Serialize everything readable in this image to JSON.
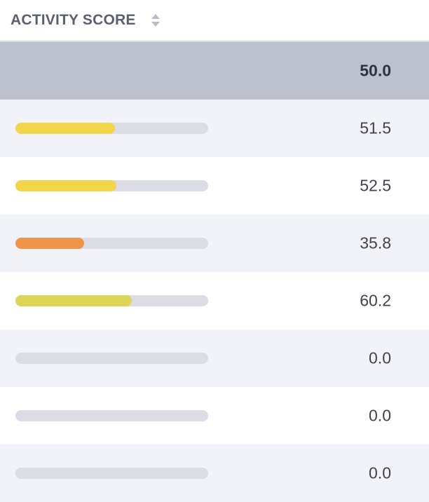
{
  "header": {
    "title": "ACTIVITY SCORE",
    "sort_icon": "sort-up-down-icon"
  },
  "summary": {
    "value": "50.0"
  },
  "rows": [
    {
      "value": "51.5",
      "score": 51.5,
      "fill_fraction": 0.515,
      "color": "#f3d54a"
    },
    {
      "value": "52.5",
      "score": 52.5,
      "fill_fraction": 0.525,
      "color": "#f3d54a"
    },
    {
      "value": "35.8",
      "score": 35.8,
      "fill_fraction": 0.358,
      "color": "#ef954a"
    },
    {
      "value": "60.2",
      "score": 60.2,
      "fill_fraction": 0.602,
      "color": "#dcd556"
    },
    {
      "value": "0.0",
      "score": 0.0,
      "fill_fraction": 0.0,
      "color": "#dcdde4"
    },
    {
      "value": "0.0",
      "score": 0.0,
      "fill_fraction": 0.0,
      "color": "#dcdde4"
    },
    {
      "value": "0.0",
      "score": 0.0,
      "fill_fraction": 0.0,
      "color": "#dcdde4"
    }
  ],
  "colors": {
    "header_text": "#5b5f70",
    "summary_bg": "#bdc1cd",
    "row_alt_bg": "#f2f3f8",
    "track": "#dcdde4"
  }
}
